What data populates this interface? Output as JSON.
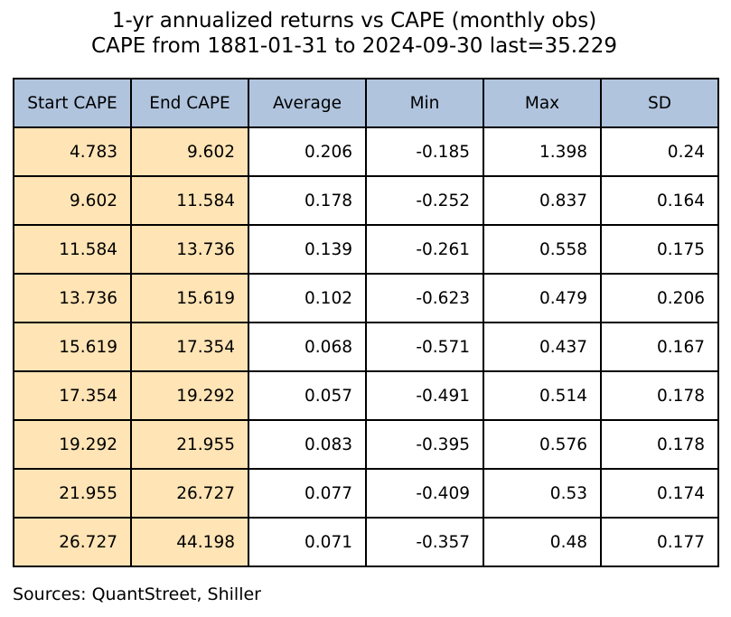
{
  "chart_data": {
    "type": "table",
    "title": "1-yr annualized returns vs CAPE (monthly obs)",
    "subtitle": "CAPE from 1881-01-31 to 2024-09-30 last=35.229",
    "columns": [
      "Start CAPE",
      "End CAPE",
      "Average",
      "Min",
      "Max",
      "SD"
    ],
    "rows": [
      [
        "4.783",
        "9.602",
        "0.206",
        "-0.185",
        "1.398",
        "0.24"
      ],
      [
        "9.602",
        "11.584",
        "0.178",
        "-0.252",
        "0.837",
        "0.164"
      ],
      [
        "11.584",
        "13.736",
        "0.139",
        "-0.261",
        "0.558",
        "0.175"
      ],
      [
        "13.736",
        "15.619",
        "0.102",
        "-0.623",
        "0.479",
        "0.206"
      ],
      [
        "15.619",
        "17.354",
        "0.068",
        "-0.571",
        "0.437",
        "0.167"
      ],
      [
        "17.354",
        "19.292",
        "0.057",
        "-0.491",
        "0.514",
        "0.178"
      ],
      [
        "19.292",
        "21.955",
        "0.083",
        "-0.395",
        "0.576",
        "0.178"
      ],
      [
        "21.955",
        "26.727",
        "0.077",
        "-0.409",
        "0.53",
        "0.174"
      ],
      [
        "26.727",
        "44.198",
        "0.071",
        "-0.357",
        "0.48",
        "0.177"
      ]
    ],
    "source": "Sources: QuantStreet, Shiller"
  },
  "colors": {
    "header_bg": "#b0c4de",
    "cape_column_bg": "#ffe4b5",
    "cell_bg": "#ffffff",
    "border": "#000000"
  }
}
